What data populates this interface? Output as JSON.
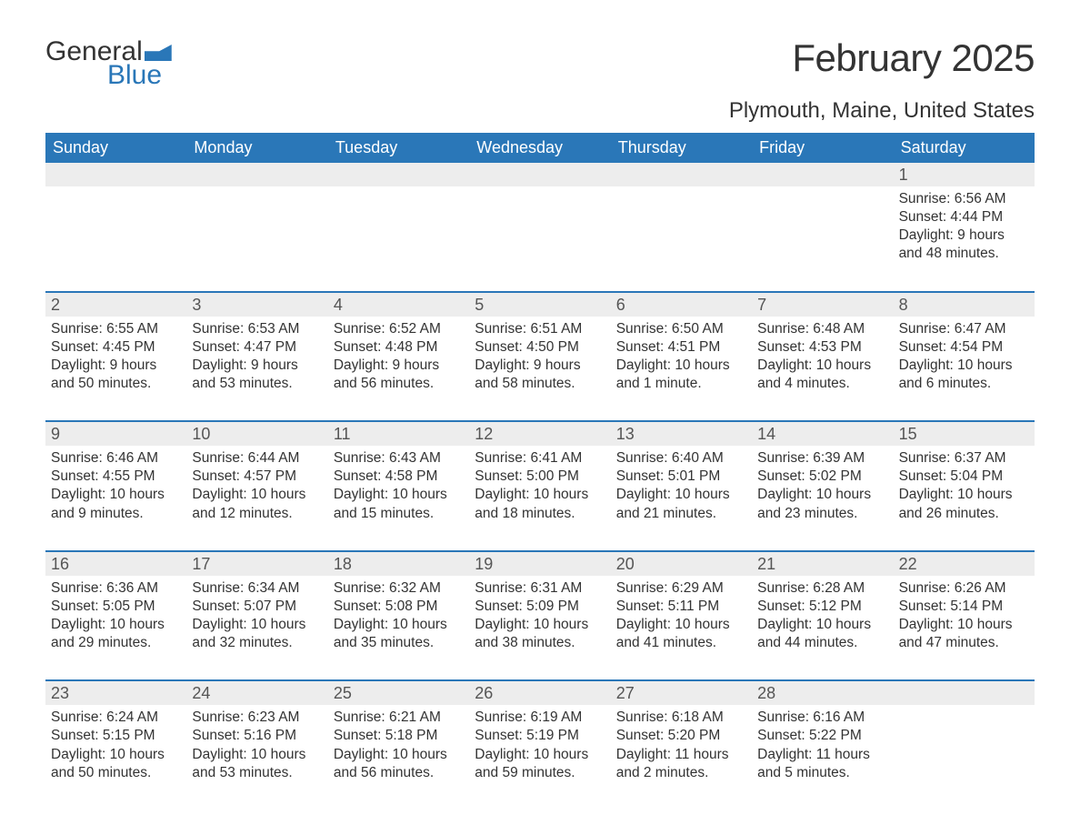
{
  "logo": {
    "word1": "General",
    "word2": "Blue"
  },
  "title": "February 2025",
  "location": "Plymouth, Maine, United States",
  "colors": {
    "brand_blue": "#2a77b8",
    "header_text": "#ffffff",
    "daynum_bg": "#ededed",
    "text": "#333333",
    "muted": "#555555",
    "background": "#ffffff"
  },
  "days_of_week": [
    "Sunday",
    "Monday",
    "Tuesday",
    "Wednesday",
    "Thursday",
    "Friday",
    "Saturday"
  ],
  "weeks": [
    {
      "days": [
        {
          "num": "",
          "sunrise": "",
          "sunset": "",
          "daylight": ""
        },
        {
          "num": "",
          "sunrise": "",
          "sunset": "",
          "daylight": ""
        },
        {
          "num": "",
          "sunrise": "",
          "sunset": "",
          "daylight": ""
        },
        {
          "num": "",
          "sunrise": "",
          "sunset": "",
          "daylight": ""
        },
        {
          "num": "",
          "sunrise": "",
          "sunset": "",
          "daylight": ""
        },
        {
          "num": "",
          "sunrise": "",
          "sunset": "",
          "daylight": ""
        },
        {
          "num": "1",
          "sunrise": "Sunrise: 6:56 AM",
          "sunset": "Sunset: 4:44 PM",
          "daylight": "Daylight: 9 hours and 48 minutes."
        }
      ]
    },
    {
      "days": [
        {
          "num": "2",
          "sunrise": "Sunrise: 6:55 AM",
          "sunset": "Sunset: 4:45 PM",
          "daylight": "Daylight: 9 hours and 50 minutes."
        },
        {
          "num": "3",
          "sunrise": "Sunrise: 6:53 AM",
          "sunset": "Sunset: 4:47 PM",
          "daylight": "Daylight: 9 hours and 53 minutes."
        },
        {
          "num": "4",
          "sunrise": "Sunrise: 6:52 AM",
          "sunset": "Sunset: 4:48 PM",
          "daylight": "Daylight: 9 hours and 56 minutes."
        },
        {
          "num": "5",
          "sunrise": "Sunrise: 6:51 AM",
          "sunset": "Sunset: 4:50 PM",
          "daylight": "Daylight: 9 hours and 58 minutes."
        },
        {
          "num": "6",
          "sunrise": "Sunrise: 6:50 AM",
          "sunset": "Sunset: 4:51 PM",
          "daylight": "Daylight: 10 hours and 1 minute."
        },
        {
          "num": "7",
          "sunrise": "Sunrise: 6:48 AM",
          "sunset": "Sunset: 4:53 PM",
          "daylight": "Daylight: 10 hours and 4 minutes."
        },
        {
          "num": "8",
          "sunrise": "Sunrise: 6:47 AM",
          "sunset": "Sunset: 4:54 PM",
          "daylight": "Daylight: 10 hours and 6 minutes."
        }
      ]
    },
    {
      "days": [
        {
          "num": "9",
          "sunrise": "Sunrise: 6:46 AM",
          "sunset": "Sunset: 4:55 PM",
          "daylight": "Daylight: 10 hours and 9 minutes."
        },
        {
          "num": "10",
          "sunrise": "Sunrise: 6:44 AM",
          "sunset": "Sunset: 4:57 PM",
          "daylight": "Daylight: 10 hours and 12 minutes."
        },
        {
          "num": "11",
          "sunrise": "Sunrise: 6:43 AM",
          "sunset": "Sunset: 4:58 PM",
          "daylight": "Daylight: 10 hours and 15 minutes."
        },
        {
          "num": "12",
          "sunrise": "Sunrise: 6:41 AM",
          "sunset": "Sunset: 5:00 PM",
          "daylight": "Daylight: 10 hours and 18 minutes."
        },
        {
          "num": "13",
          "sunrise": "Sunrise: 6:40 AM",
          "sunset": "Sunset: 5:01 PM",
          "daylight": "Daylight: 10 hours and 21 minutes."
        },
        {
          "num": "14",
          "sunrise": "Sunrise: 6:39 AM",
          "sunset": "Sunset: 5:02 PM",
          "daylight": "Daylight: 10 hours and 23 minutes."
        },
        {
          "num": "15",
          "sunrise": "Sunrise: 6:37 AM",
          "sunset": "Sunset: 5:04 PM",
          "daylight": "Daylight: 10 hours and 26 minutes."
        }
      ]
    },
    {
      "days": [
        {
          "num": "16",
          "sunrise": "Sunrise: 6:36 AM",
          "sunset": "Sunset: 5:05 PM",
          "daylight": "Daylight: 10 hours and 29 minutes."
        },
        {
          "num": "17",
          "sunrise": "Sunrise: 6:34 AM",
          "sunset": "Sunset: 5:07 PM",
          "daylight": "Daylight: 10 hours and 32 minutes."
        },
        {
          "num": "18",
          "sunrise": "Sunrise: 6:32 AM",
          "sunset": "Sunset: 5:08 PM",
          "daylight": "Daylight: 10 hours and 35 minutes."
        },
        {
          "num": "19",
          "sunrise": "Sunrise: 6:31 AM",
          "sunset": "Sunset: 5:09 PM",
          "daylight": "Daylight: 10 hours and 38 minutes."
        },
        {
          "num": "20",
          "sunrise": "Sunrise: 6:29 AM",
          "sunset": "Sunset: 5:11 PM",
          "daylight": "Daylight: 10 hours and 41 minutes."
        },
        {
          "num": "21",
          "sunrise": "Sunrise: 6:28 AM",
          "sunset": "Sunset: 5:12 PM",
          "daylight": "Daylight: 10 hours and 44 minutes."
        },
        {
          "num": "22",
          "sunrise": "Sunrise: 6:26 AM",
          "sunset": "Sunset: 5:14 PM",
          "daylight": "Daylight: 10 hours and 47 minutes."
        }
      ]
    },
    {
      "days": [
        {
          "num": "23",
          "sunrise": "Sunrise: 6:24 AM",
          "sunset": "Sunset: 5:15 PM",
          "daylight": "Daylight: 10 hours and 50 minutes."
        },
        {
          "num": "24",
          "sunrise": "Sunrise: 6:23 AM",
          "sunset": "Sunset: 5:16 PM",
          "daylight": "Daylight: 10 hours and 53 minutes."
        },
        {
          "num": "25",
          "sunrise": "Sunrise: 6:21 AM",
          "sunset": "Sunset: 5:18 PM",
          "daylight": "Daylight: 10 hours and 56 minutes."
        },
        {
          "num": "26",
          "sunrise": "Sunrise: 6:19 AM",
          "sunset": "Sunset: 5:19 PM",
          "daylight": "Daylight: 10 hours and 59 minutes."
        },
        {
          "num": "27",
          "sunrise": "Sunrise: 6:18 AM",
          "sunset": "Sunset: 5:20 PM",
          "daylight": "Daylight: 11 hours and 2 minutes."
        },
        {
          "num": "28",
          "sunrise": "Sunrise: 6:16 AM",
          "sunset": "Sunset: 5:22 PM",
          "daylight": "Daylight: 11 hours and 5 minutes."
        },
        {
          "num": "",
          "sunrise": "",
          "sunset": "",
          "daylight": ""
        }
      ]
    }
  ]
}
